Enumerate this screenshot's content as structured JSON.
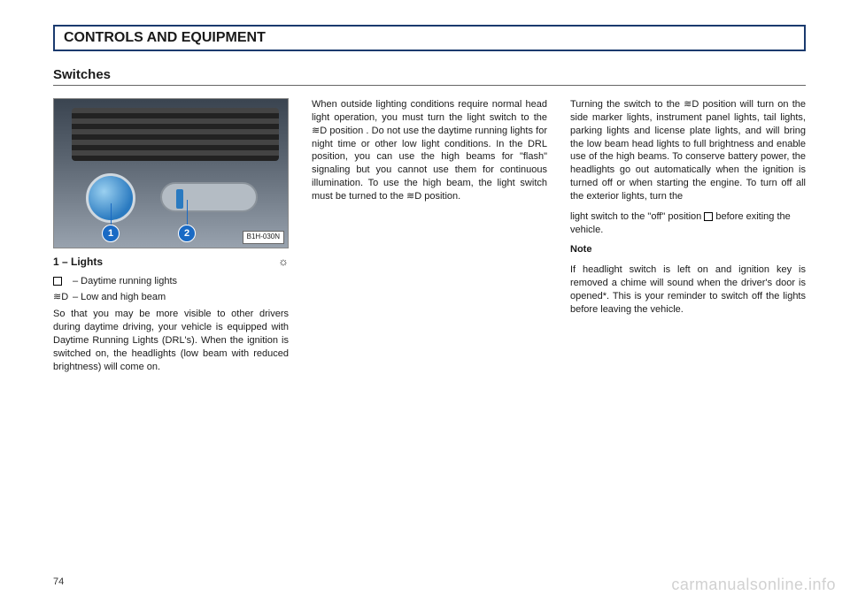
{
  "header": {
    "title": "CONTROLS AND EQUIPMENT"
  },
  "section": {
    "title": "Switches"
  },
  "figure": {
    "callouts": [
      "1",
      "2"
    ],
    "label": "B1H-030N"
  },
  "left": {
    "item_heading": "1 –  Lights",
    "sun_glyph": "☼",
    "defs": [
      {
        "sym": "box",
        "text": "– Daytime running lights"
      },
      {
        "sym": "≋D",
        "text": "– Low and high beam"
      }
    ],
    "para1": "So that you may be more visible to other drivers during daytime driving, your vehicle is equipped with Daytime Running Lights (DRL's). When the ignition is switched on, the headlights (low beam with reduced brightness) will come on."
  },
  "middle": {
    "para1": "When outside lighting conditions require normal head light operation, you must turn the light switch to the ≋D position .  Do not use the daytime running lights for night time or other low light conditions.  In the DRL position, you can use the high beams for \"flash\" signaling but you cannot use them for continuous illumination.  To use the high beam, the light switch must be turned to the ≋D position."
  },
  "right": {
    "para1": "Turning the switch to the ≋D position will turn on the side marker lights, instrument panel lights, tail lights, parking lights and license plate lights, and will bring the low beam head lights to full brightness and enable use of the high beams.  To conserve battery power, the headlights go out automatically when the ignition is turned off or when starting the engine.  To turn off all the exterior lights, turn the",
    "para2_pre": "light switch to the \"off\" position ",
    "para2_post": " before exiting the vehicle.",
    "note_h": "Note",
    "note": "If headlight switch is left on and ignition key is removed a chime will sound when the driver's door is opened*.  This is your reminder to switch off the lights before leaving the vehicle."
  },
  "page_number": "74",
  "watermark": "carmanualsonline.info"
}
